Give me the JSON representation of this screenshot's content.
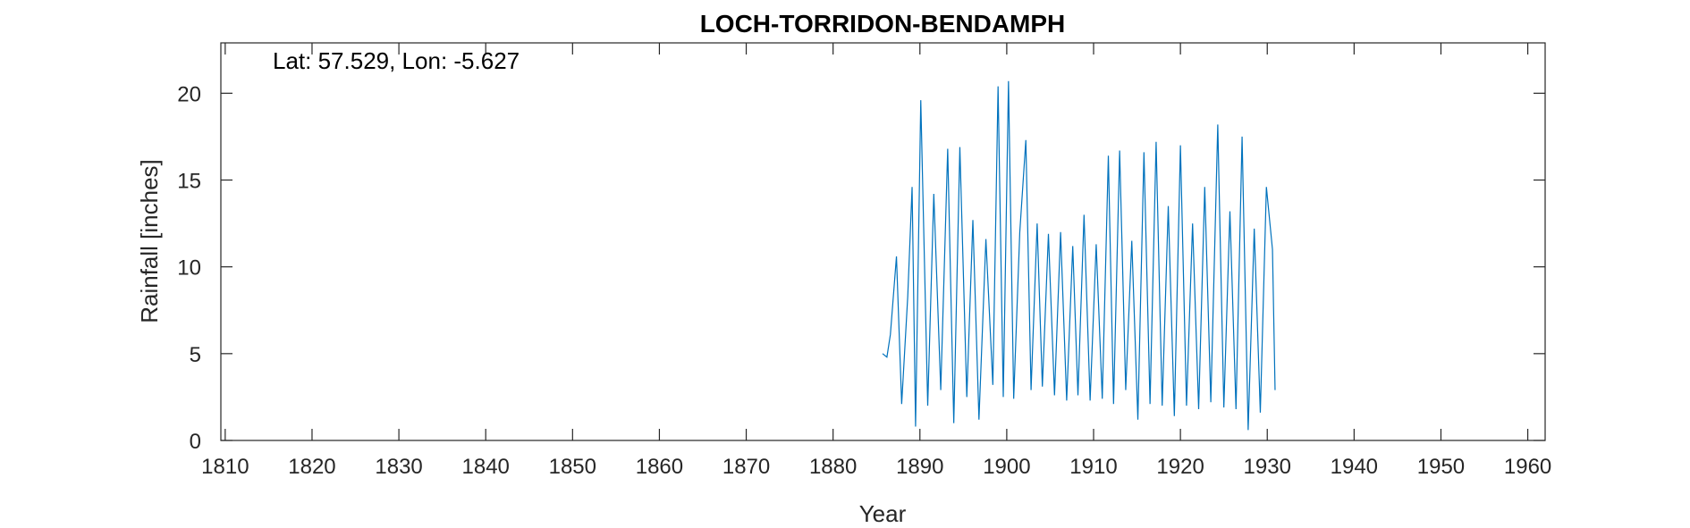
{
  "chart_data": {
    "type": "line",
    "title": "LOCH-TORRIDON-BENDAMPH",
    "annotation": "Lat: 57.529, Lon: -5.627",
    "xlabel": "Year",
    "ylabel": "Rainfall [inches]",
    "xlim": [
      1809.5,
      1962
    ],
    "ylim": [
      0,
      22.9
    ],
    "x_ticks": [
      1810,
      1820,
      1830,
      1840,
      1850,
      1860,
      1870,
      1880,
      1890,
      1900,
      1910,
      1920,
      1930,
      1940,
      1950,
      1960
    ],
    "y_ticks": [
      0,
      5,
      10,
      15,
      20
    ],
    "grid": false,
    "line_color": "#0072BD",
    "series": [
      {
        "x": [
          1885.7,
          1886.2,
          1886.6,
          1887.3,
          1887.9,
          1888.6,
          1889.1,
          1889.5,
          1890.1,
          1890.9,
          1891.6,
          1892.4,
          1893.2,
          1893.9,
          1894.6,
          1895.4,
          1896.1,
          1896.8,
          1897.6,
          1898.4,
          1899.0,
          1899.6,
          1900.2,
          1900.8,
          1901.5,
          1902.2,
          1902.8,
          1903.5,
          1904.1,
          1904.8,
          1905.5,
          1906.2,
          1906.9,
          1907.6,
          1908.2,
          1908.9,
          1909.6,
          1910.3,
          1911.0,
          1911.7,
          1912.3,
          1913.0,
          1913.7,
          1914.4,
          1915.1,
          1915.8,
          1916.5,
          1917.2,
          1917.9,
          1918.6,
          1919.3,
          1920.0,
          1920.7,
          1921.4,
          1922.1,
          1922.8,
          1923.5,
          1924.3,
          1925.0,
          1925.7,
          1926.4,
          1927.1,
          1927.8,
          1928.5,
          1929.2,
          1929.9,
          1930.6,
          1930.9
        ],
        "values": [
          5.0,
          4.8,
          6.1,
          10.6,
          2.1,
          8.3,
          14.6,
          0.8,
          19.6,
          2.0,
          14.2,
          2.9,
          16.8,
          1.0,
          16.9,
          2.5,
          12.7,
          1.2,
          11.6,
          3.2,
          20.4,
          2.5,
          20.7,
          2.4,
          12.0,
          17.3,
          2.9,
          12.5,
          3.1,
          11.9,
          2.6,
          12.0,
          2.3,
          11.2,
          2.6,
          13.0,
          2.3,
          11.3,
          2.4,
          16.4,
          2.1,
          16.7,
          2.9,
          11.5,
          1.2,
          16.6,
          2.1,
          17.2,
          2.0,
          13.5,
          1.4,
          17.0,
          2.0,
          12.5,
          1.8,
          14.6,
          2.2,
          18.2,
          1.9,
          13.2,
          1.8,
          17.5,
          0.6,
          12.2,
          1.6,
          14.6,
          11.0,
          2.9
        ]
      }
    ]
  }
}
